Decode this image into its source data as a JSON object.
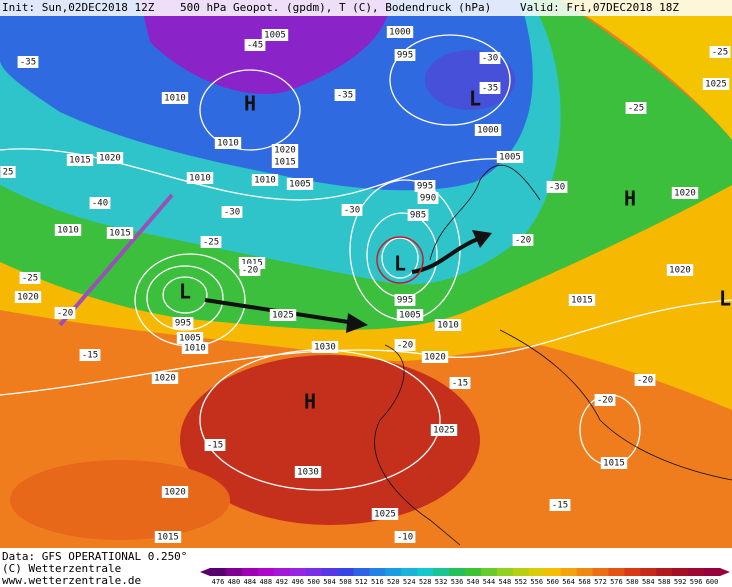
{
  "header": {
    "init": "Init: Sun,02DEC2018 12Z",
    "title": "500 hPa Geopot. (gpdm), T (C), Bodendruck (hPa)",
    "valid": "Valid: Fri,07DEC2018 18Z"
  },
  "isobar_labels": [
    "1005",
    "1000",
    "995",
    "1010",
    "1020",
    "1015",
    "1010",
    "1010",
    "1010",
    "1005",
    "1015",
    "1020",
    "1010",
    "1015",
    "1000",
    "1005",
    "995",
    "990",
    "985",
    "1020",
    "1025",
    "1015",
    "1020",
    "1015",
    "1020",
    "995",
    "1005",
    "1010",
    "1025",
    "995",
    "1005",
    "1010",
    "1030",
    "1020",
    "1020",
    "1025",
    "1030",
    "1020",
    "1025",
    "1015",
    "1015"
  ],
  "temperature_labels": [
    "-35",
    "-45",
    "-35",
    "-35",
    "-30",
    "-25",
    "-25",
    "-40",
    "-30",
    "-30",
    "-25",
    "-25",
    "-20",
    "-20",
    "-20",
    "-20",
    "-15",
    "-15",
    "-15",
    "-15",
    "-10",
    "-20",
    "-20",
    "-30",
    "25"
  ],
  "pressure_centers": [
    "H",
    "L",
    "H",
    "L",
    "L",
    "H",
    "L"
  ],
  "colorbar": {
    "values": [
      476,
      480,
      484,
      488,
      492,
      496,
      500,
      504,
      508,
      512,
      516,
      520,
      524,
      528,
      532,
      536,
      540,
      544,
      548,
      552,
      556,
      560,
      564,
      568,
      572,
      576,
      580,
      584,
      588,
      592,
      596,
      600
    ]
  },
  "footer": {
    "data": "Data: GFS OPERATIONAL 0.250°",
    "copyright": "(C) Wetterzentrale",
    "url": "www.wetterzentrale.de"
  }
}
